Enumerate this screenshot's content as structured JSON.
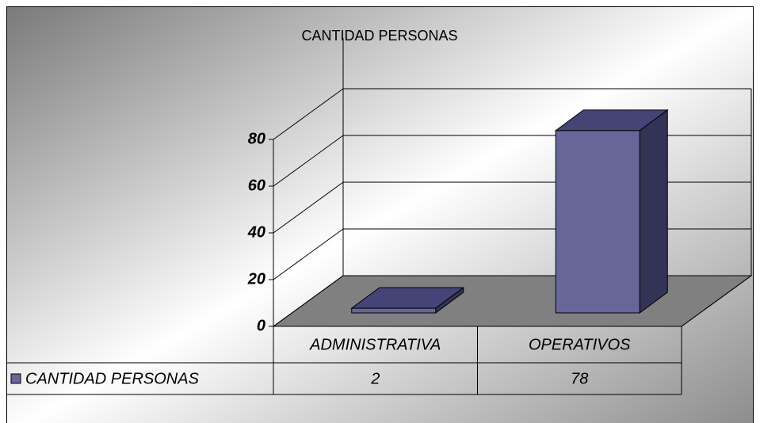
{
  "chart_data": {
    "type": "bar",
    "title": "CANTIDAD PERSONAS",
    "categories": [
      "ADMINISTRATIVA",
      "OPERATIVOS"
    ],
    "series": [
      {
        "name": "CANTIDAD PERSONAS",
        "color": "#666699",
        "values": [
          2,
          78
        ]
      }
    ],
    "ylim": [
      0,
      80
    ],
    "yticks": [
      0,
      20,
      40,
      60,
      80
    ],
    "grid": true,
    "data_table": true,
    "three_d": true
  }
}
